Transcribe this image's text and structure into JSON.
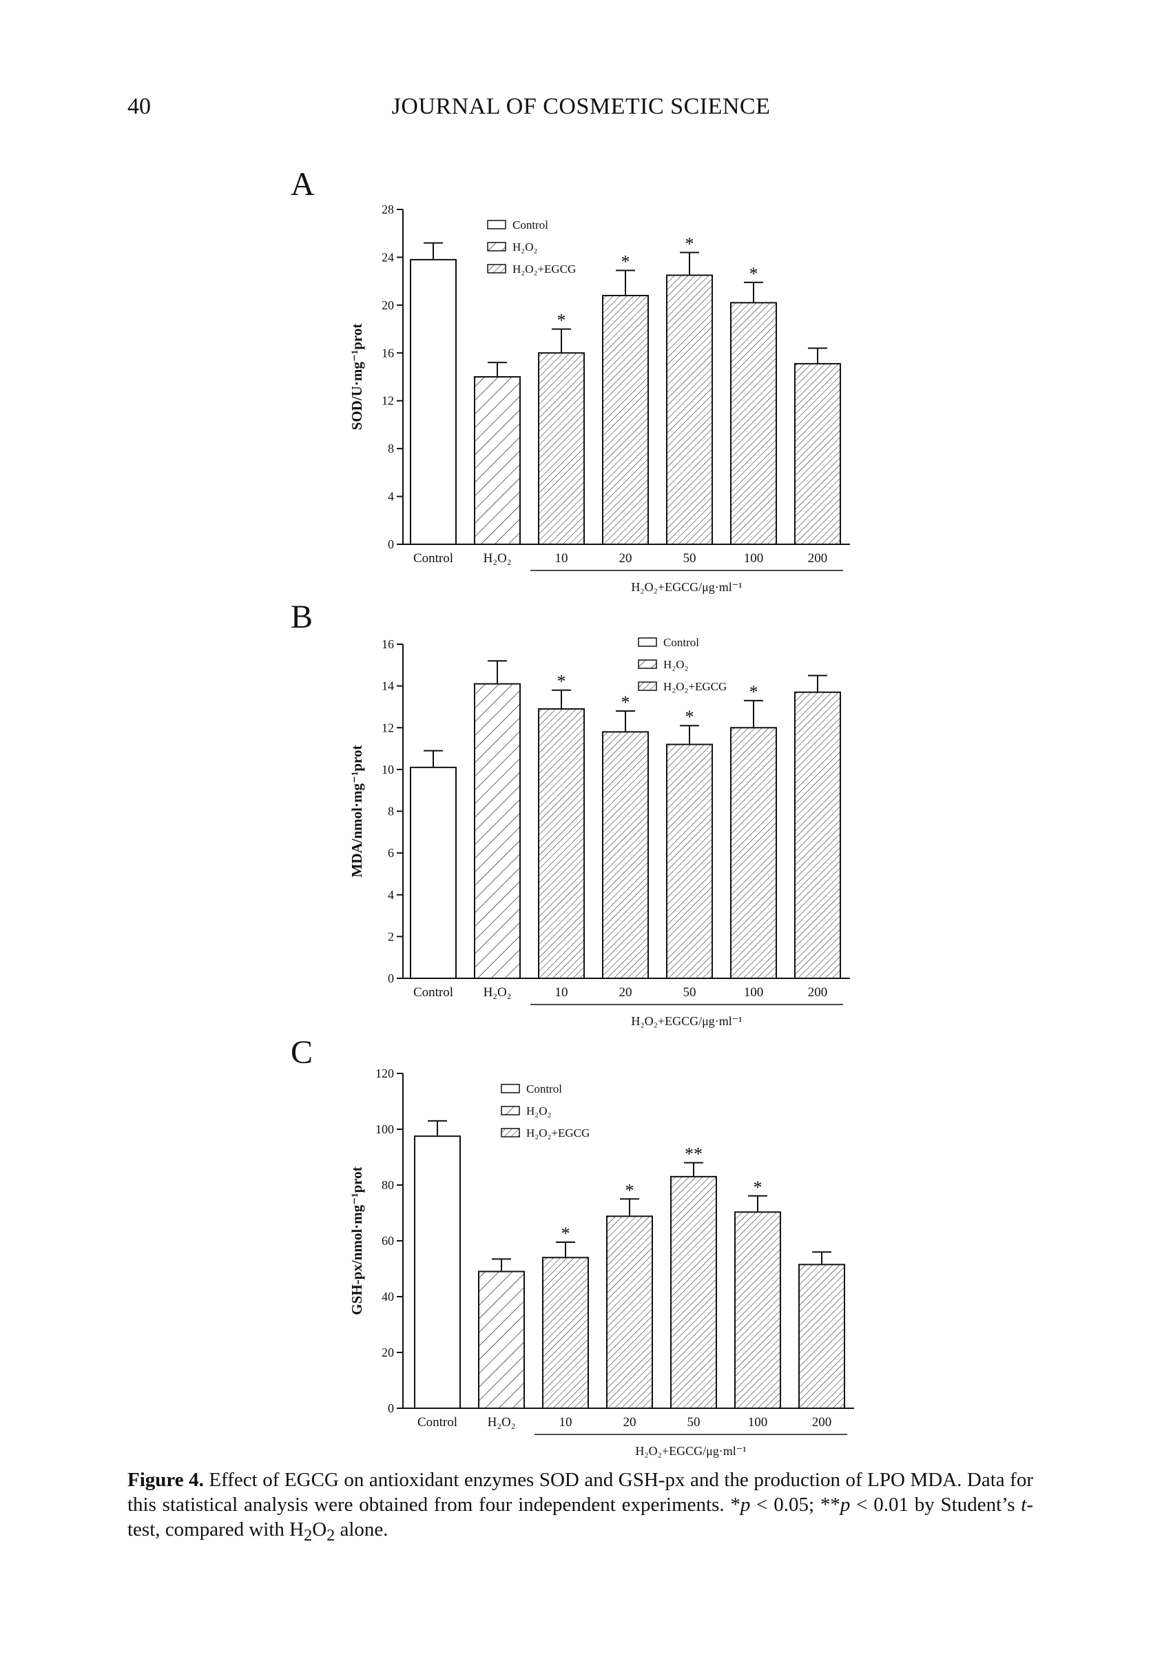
{
  "header": {
    "page_number": "40",
    "journal": "JOURNAL OF COSMETIC SCIENCE"
  },
  "figure": {
    "caption_label": "Figure 4.",
    "caption_text_1": " Effect of EGCG on antioxidant enzymes SOD and GSH-px and the production of LPO MDA. Data for this statistical analysis were obtained from four independent experiments. *",
    "caption_p1": "p",
    "caption_text_2": " < 0.05; **",
    "caption_p2": "p",
    "caption_text_3": " < 0.01 by Student’s ",
    "caption_t": "t",
    "caption_text_4": "-test, compared with H",
    "caption_sub1": "2",
    "caption_o": "O",
    "caption_sub2": "2",
    "caption_text_5": " alone."
  },
  "legend_labels": [
    "Control",
    "H₂O₂",
    "H₂O₂+EGCG"
  ],
  "group_label": "H₂O₂+EGCG/μg·ml⁻¹",
  "chart_data": [
    {
      "type": "bar",
      "panel": "A",
      "ylabel": "SOD/U·mg⁻¹prot",
      "ylim": [
        0,
        28
      ],
      "yticks": [
        0,
        4,
        8,
        12,
        16,
        20,
        24,
        28
      ],
      "categories": [
        "Control",
        "H₂O₂",
        "10",
        "20",
        "50",
        "100",
        "200"
      ],
      "values": [
        23.8,
        14.0,
        16.0,
        20.8,
        22.5,
        20.2,
        15.1
      ],
      "errors": [
        1.4,
        1.2,
        2.0,
        2.1,
        1.9,
        1.7,
        1.3
      ],
      "significance": [
        "",
        "",
        "*",
        "*",
        "*",
        "*",
        ""
      ],
      "series_group": [
        "Control",
        "H₂O₂",
        "H₂O₂+EGCG",
        "H₂O₂+EGCG",
        "H₂O₂+EGCG",
        "H₂O₂+EGCG",
        "H₂O₂+EGCG"
      ]
    },
    {
      "type": "bar",
      "panel": "B",
      "ylabel": "MDA/nmol·mg⁻¹prot",
      "ylim": [
        0,
        16
      ],
      "yticks": [
        0,
        2,
        4,
        6,
        8,
        10,
        12,
        14,
        16
      ],
      "categories": [
        "Control",
        "H₂O₂",
        "10",
        "20",
        "50",
        "100",
        "200"
      ],
      "values": [
        10.1,
        14.1,
        12.9,
        11.8,
        11.2,
        12.0,
        13.7
      ],
      "errors": [
        0.8,
        1.1,
        0.9,
        1.0,
        0.9,
        1.3,
        0.8
      ],
      "significance": [
        "",
        "",
        "*",
        "*",
        "*",
        "*",
        ""
      ],
      "series_group": [
        "Control",
        "H₂O₂",
        "H₂O₂+EGCG",
        "H₂O₂+EGCG",
        "H₂O₂+EGCG",
        "H₂O₂+EGCG",
        "H₂O₂+EGCG"
      ]
    },
    {
      "type": "bar",
      "panel": "C",
      "ylabel": "GSH-px/nmol·mg⁻¹prot",
      "ylim": [
        0,
        120
      ],
      "yticks": [
        0,
        20,
        40,
        60,
        80,
        100,
        120
      ],
      "categories": [
        "Control",
        "H₂O₂",
        "10",
        "20",
        "50",
        "100",
        "200"
      ],
      "values": [
        97.5,
        49.0,
        54.0,
        68.8,
        83.0,
        70.3,
        51.5
      ],
      "errors": [
        5.5,
        4.5,
        5.5,
        6.2,
        5.0,
        5.8,
        4.5
      ],
      "significance": [
        "",
        "",
        "*",
        "*",
        "**",
        "*",
        ""
      ],
      "series_group": [
        "Control",
        "H₂O₂",
        "H₂O₂+EGCG",
        "H₂O₂+EGCG",
        "H₂O₂+EGCG",
        "H₂O₂+EGCG",
        "H₂O₂+EGCG"
      ]
    }
  ]
}
